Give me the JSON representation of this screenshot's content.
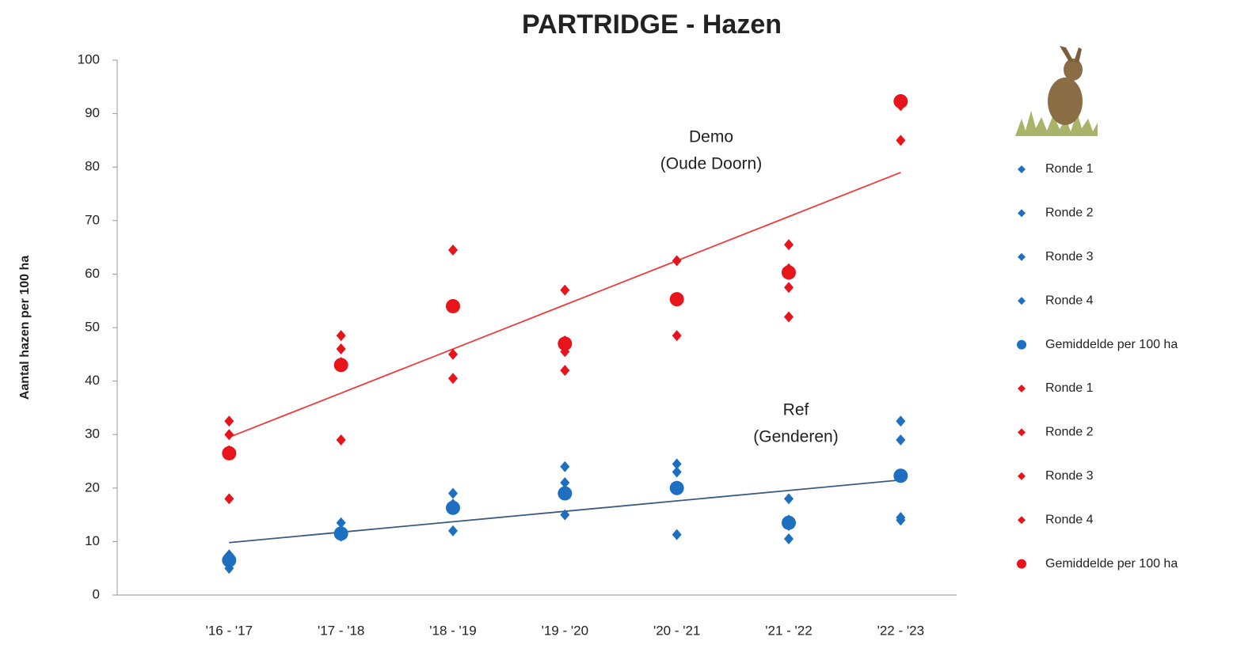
{
  "chart_data": {
    "type": "scatter",
    "title": "PARTRIDGE - Hazen",
    "y_label": "Aantal hazen per 100 ha",
    "categories": [
      "'16 - '17",
      "'17 - '18",
      "'18 - '19",
      "'19 - '20",
      "'20 - '21",
      "'21 - '22",
      "'22 - '23"
    ],
    "ylim": [
      0,
      100
    ],
    "yticks": [
      0,
      10,
      20,
      30,
      40,
      50,
      60,
      70,
      80,
      90,
      100
    ],
    "grid": false,
    "series": [
      {
        "name": "Ronde 1",
        "color": "#1f6fc0",
        "marker": "diamond",
        "values": [
          7.5,
          13.5,
          19,
          24,
          24.5,
          18,
          32.5
        ]
      },
      {
        "name": "Ronde 2",
        "color": "#1f6fc0",
        "marker": "diamond",
        "values": [
          5,
          12,
          17,
          21,
          23,
          14,
          29
        ]
      },
      {
        "name": "Ronde 3",
        "color": "#1f6fc0",
        "marker": "diamond",
        "values": [
          6.5,
          11,
          12,
          15,
          11.3,
          10.5,
          14
        ]
      },
      {
        "name": "Ronde 4",
        "color": "#1f6fc0",
        "marker": "diamond",
        "values": [
          7,
          11.5,
          16.5,
          19,
          20,
          13,
          14.5
        ]
      },
      {
        "name": "Gemiddelde per 100 ha",
        "color": "#1f6fc0",
        "marker": "circle",
        "values": [
          6.5,
          11.5,
          16.3,
          19,
          20,
          13.5,
          22.3
        ]
      },
      {
        "name": "Ronde 1",
        "color": "#e8141b",
        "marker": "diamond",
        "values": [
          32.5,
          48.5,
          64.5,
          57,
          62.5,
          65.5,
          92.5
        ]
      },
      {
        "name": "Ronde 2",
        "color": "#e8141b",
        "marker": "diamond",
        "values": [
          30,
          46,
          45,
          47.5,
          55.5,
          57.5,
          91.5
        ]
      },
      {
        "name": "Ronde 3",
        "color": "#e8141b",
        "marker": "diamond",
        "values": [
          18,
          29,
          40.5,
          42,
          48.5,
          52,
          85
        ]
      },
      {
        "name": "Ronde 4",
        "color": "#e8141b",
        "marker": "diamond",
        "values": [
          27,
          43.5,
          54,
          45.5,
          55,
          61,
          92
        ]
      },
      {
        "name": "Gemiddelde per 100 ha",
        "color": "#e8141b",
        "marker": "circle",
        "values": [
          26.5,
          43,
          54,
          47,
          55.3,
          60.3,
          92.3
        ]
      }
    ],
    "trendlines": [
      {
        "color": "#f03a3a",
        "values": [
          29.5,
          37.75,
          46,
          54.25,
          62.5,
          70.75,
          79
        ]
      },
      {
        "color": "#3d5a80",
        "values": [
          9.8,
          11.75,
          13.7,
          15.65,
          17.6,
          19.55,
          21.5
        ]
      }
    ],
    "annotations": [
      {
        "color": "#e8141b",
        "lines": [
          "Demo",
          "(Oude Doorn)"
        ]
      },
      {
        "color": "#1f6fc0",
        "lines": [
          "Ref",
          "(Genderen)"
        ]
      }
    ]
  }
}
